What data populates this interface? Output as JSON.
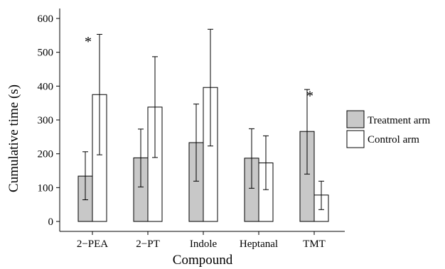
{
  "colors": {
    "treatment": "#c8c8c8",
    "control": "#ffffff"
  },
  "chart_data": {
    "type": "bar",
    "xlabel": "Compound",
    "ylabel": "Cumulative time (s)",
    "ylim": [
      0,
      620
    ],
    "yticks": [
      0,
      100,
      200,
      300,
      400,
      500,
      600
    ],
    "ytick_labels": [
      "0",
      "100",
      "200",
      "300",
      "400",
      "500",
      "600"
    ],
    "categories": [
      "2−PEA",
      "2−PT",
      "Indole",
      "Heptanal",
      "TMT"
    ],
    "series": [
      {
        "name": "Treatment arm",
        "values": [
          134,
          188,
          233,
          187,
          266
        ],
        "err_low": [
          64,
          102,
          119,
          98,
          140
        ],
        "err_high": [
          206,
          273,
          347,
          274,
          390
        ]
      },
      {
        "name": "Control arm",
        "values": [
          375,
          338,
          396,
          173,
          78
        ],
        "err_low": [
          197,
          189,
          223,
          94,
          35
        ],
        "err_high": [
          553,
          487,
          568,
          253,
          119
        ]
      }
    ],
    "annotations": [
      {
        "category_index": 0,
        "text": "*",
        "value": 545
      },
      {
        "category_index": 4,
        "text": "*",
        "value": 385
      }
    ],
    "legend_position": "right"
  }
}
